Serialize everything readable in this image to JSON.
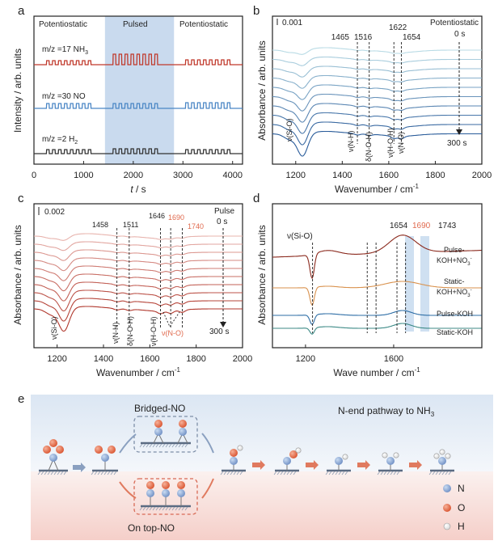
{
  "figure": {
    "panel_a": {
      "label": "a",
      "ylabel": "Intensity / arb. units",
      "xlabel_italic": "t",
      "xlabel_unit": " / s",
      "regions": [
        "Potentiostatic",
        "Pulsed",
        "Potentiostatic"
      ],
      "traces": [
        {
          "label": "m/z =17 NH",
          "sub": "3",
          "color": "#c0392b"
        },
        {
          "label": "m/z =30 NO",
          "sub": "",
          "color": "#4a86c5"
        },
        {
          "label": "m/z =2 H",
          "sub": "2",
          "color": "#333333"
        }
      ]
    },
    "panel_b": {
      "label": "b",
      "scale": "0.001",
      "mode": "Potentiostatic",
      "t_start": "0 s",
      "t_end": "300 s",
      "peaks": [
        "1465",
        "1516",
        "1622",
        "1654"
      ],
      "ylabel": "Absorbance / arb. units",
      "xlabel": "Wavenumber / cm",
      "xlabel_sup": "-1",
      "assign": [
        "ν(Si-O)",
        "ν(N-H)",
        "δ(N-O-H)",
        "ν(H-O-H)",
        "ν(N-O)"
      ]
    },
    "panel_c": {
      "label": "c",
      "scale": "0.002",
      "mode": "Pulse",
      "t_start": "0 s",
      "t_end": "300 s",
      "peaks": [
        "1458",
        "1511",
        "1646"
      ],
      "peaks_hl": [
        "1690",
        "1740"
      ],
      "ylabel": "Absorbance / arb. units",
      "xlabel": "Wavenumber / cm",
      "xlabel_sup": "-1",
      "assign": [
        "ν(Si-O)",
        "ν(N-H)",
        "δ(N-O-H)",
        "ν(H-O-H)"
      ],
      "assign_hl": "ν(N-O)"
    },
    "panel_d": {
      "label": "d",
      "ylabel": "Absorbance / arb. units",
      "xlabel": "Wave number / cm",
      "xlabel_sup": "-1",
      "assign": "ν(Si-O)",
      "peaks": [
        "1654"
      ],
      "peaks_hl": [
        "1690"
      ],
      "peak_1743": "1743",
      "traces": [
        {
          "label": "Pulse-",
          "label2": "KOH+NO",
          "sup": "-",
          "sub": "3",
          "color": "#8b2a1e"
        },
        {
          "label": "Static-",
          "label2": "KOH+NO",
          "sup": "-",
          "sub": "3",
          "color": "#d9924e"
        },
        {
          "label": "Pulse-KOH",
          "label2": "",
          "sup": "",
          "sub": "",
          "color": "#2e6ea6"
        },
        {
          "label": "Static-KOH",
          "label2": "",
          "sup": "",
          "sub": "",
          "color": "#3c8a86"
        }
      ]
    },
    "panel_e": {
      "label": "e",
      "title": "N-end pathway to NH",
      "title_sub": "3",
      "bridged": "Bridged-NO",
      "ontop": "On top-NO",
      "legend": [
        {
          "label": "N",
          "color": "#8aa8d6"
        },
        {
          "label": "O",
          "color": "#e8734f"
        },
        {
          "label": "H",
          "color": "#ffffff"
        }
      ]
    }
  },
  "chart_data": [
    {
      "type": "line",
      "title": "a",
      "xlabel": "t / s",
      "ylabel": "Intensity / arb. units",
      "xlim": [
        0,
        4200
      ],
      "xticks": [
        0,
        1000,
        2000,
        3000,
        4000
      ],
      "shaded_range": [
        1430,
        2820
      ],
      "series": [
        "m/z =17 NH3",
        "m/z =30 NO",
        "m/z =2 H2"
      ]
    },
    {
      "type": "line",
      "title": "b",
      "xlabel": "Wavenumber / cm-1",
      "ylabel": "Absorbance / arb. units",
      "xlim": [
        1100,
        2000
      ],
      "xticks": [
        1200,
        1400,
        1600,
        1800,
        2000
      ],
      "peak_positions": [
        1465,
        1516,
        1622,
        1654
      ],
      "n_spectra": 10,
      "time_range_s": [
        0,
        300
      ]
    },
    {
      "type": "line",
      "title": "c",
      "xlabel": "Wavenumber / cm-1",
      "ylabel": "Absorbance / arb. units",
      "xlim": [
        1100,
        2000
      ],
      "xticks": [
        1200,
        1400,
        1600,
        1800,
        2000
      ],
      "peak_positions": [
        1458,
        1511,
        1646,
        1690,
        1740
      ],
      "n_spectra": 10,
      "time_range_s": [
        0,
        300
      ]
    },
    {
      "type": "line",
      "title": "d",
      "xlabel": "Wave number / cm-1",
      "ylabel": "Absorbance / arb. units",
      "xlim": [
        1050,
        2000
      ],
      "xticks": [
        1200,
        1600
      ],
      "peak_positions": [
        1654,
        1690,
        1743
      ],
      "series": [
        "Pulse-KOH+NO3-",
        "Static-KOH+NO3-",
        "Pulse-KOH",
        "Static-KOH"
      ]
    }
  ]
}
